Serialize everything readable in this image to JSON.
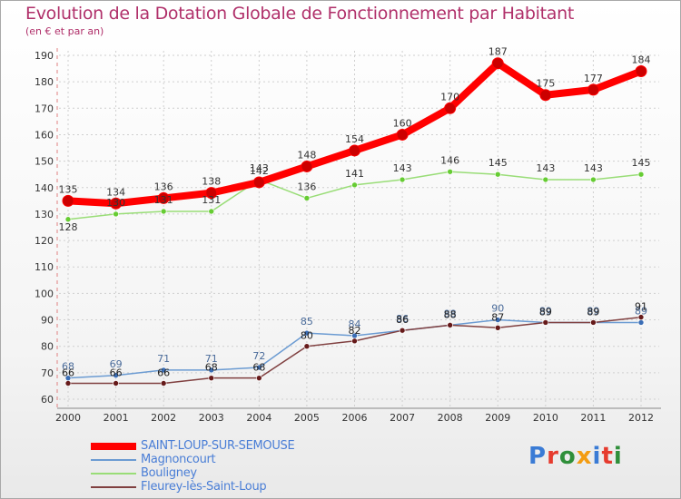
{
  "header": {
    "title": "Evolution de la Dotation Globale de Fonctionnement par Habitant",
    "subtitle": "(en € et par an)"
  },
  "logo": {
    "text": "Proxiti",
    "letter_colors": [
      "#3a7bd5",
      "#e63b2e",
      "#2f8f3a",
      "#f39c12",
      "#3a7bd5",
      "#e63b2e",
      "#2f8f3a"
    ]
  },
  "chart_data": {
    "type": "line",
    "x": [
      "2000",
      "2001",
      "2002",
      "2003",
      "2004",
      "2005",
      "2006",
      "2007",
      "2008",
      "2009",
      "2010",
      "2011",
      "2012"
    ],
    "ylim": [
      60,
      190
    ],
    "yticks": [
      60,
      70,
      80,
      90,
      100,
      110,
      120,
      130,
      140,
      150,
      160,
      170,
      180,
      190
    ],
    "grid": true,
    "legend_position": "bottom-left",
    "series": [
      {
        "name": "SAINT-LOUP-SUR-SEMOUSE",
        "color": "#ff0000",
        "marker": "#cc0000",
        "values": [
          135,
          134,
          136,
          138,
          142,
          148,
          154,
          160,
          170,
          187,
          175,
          177,
          184
        ],
        "labels": [
          "135",
          "134",
          "136",
          "138",
          "142",
          "148",
          "154",
          "160",
          "170",
          "187",
          "175",
          "177",
          "184"
        ]
      },
      {
        "name": "Magnoncourt",
        "color": "#6b9bd2",
        "marker": "#3a6db5",
        "values": [
          68,
          69,
          71,
          71,
          72,
          85,
          84,
          86,
          88,
          90,
          89,
          89,
          89
        ],
        "labels": [
          "68",
          "69",
          "71",
          "71",
          "72",
          "85",
          "84",
          "86",
          "88",
          "90",
          "89",
          "89",
          "89"
        ]
      },
      {
        "name": "Bouligney",
        "color": "#99dd77",
        "marker": "#66cc33",
        "values": [
          128,
          130,
          131,
          131,
          143,
          136,
          141,
          143,
          146,
          145,
          143,
          143,
          145
        ],
        "labels": [
          "128",
          "130",
          "131",
          "131",
          "143",
          "136",
          "141",
          "143",
          "146",
          "145",
          "143",
          "143",
          "145"
        ]
      },
      {
        "name": "Fleurey-lès-Saint-Loup",
        "color": "#804040",
        "marker": "#661a1a",
        "values": [
          66,
          66,
          66,
          68,
          68,
          80,
          82,
          86,
          88,
          87,
          89,
          89,
          91
        ],
        "labels": [
          "66",
          "66",
          "66",
          "68",
          "68",
          "80",
          "82",
          "86",
          "88",
          "87",
          "89",
          "89",
          "91"
        ]
      }
    ]
  }
}
